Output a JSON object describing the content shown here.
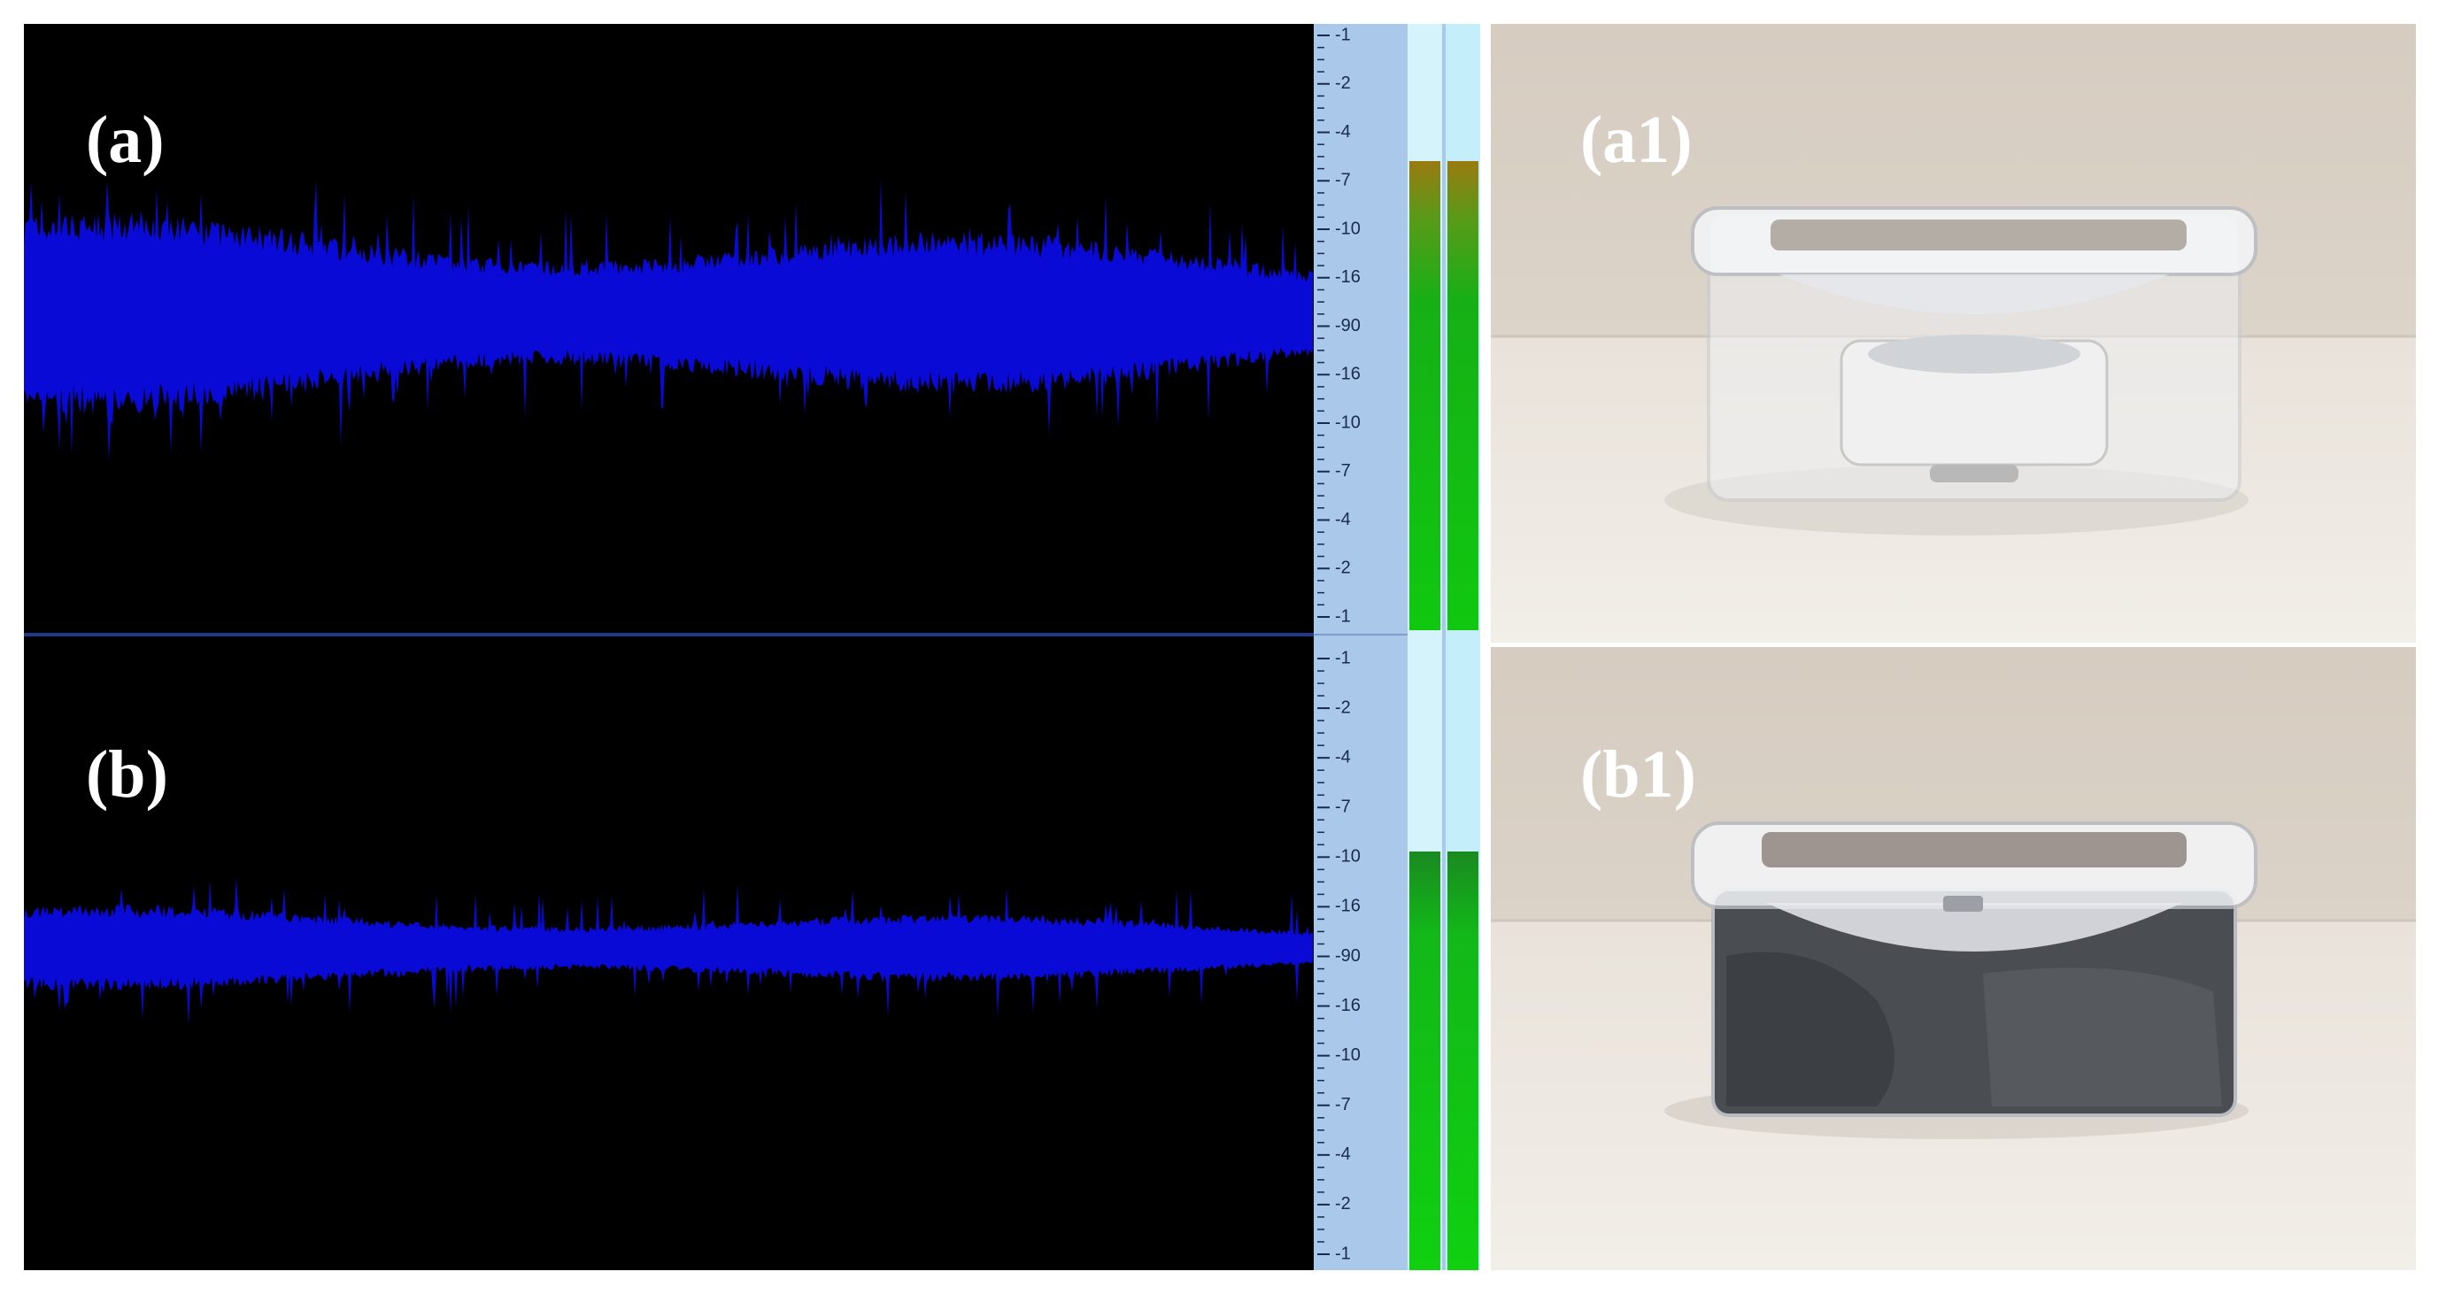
{
  "panels": {
    "a": "(a)",
    "b": "(b)",
    "a1": "(a1)",
    "b1": "(b1)"
  },
  "meter": {
    "top_ticks": [
      "-1",
      "-2",
      "-4",
      "-7",
      "-10",
      "-16",
      "-90",
      "-16",
      "-10",
      "-7",
      "-4",
      "-2",
      "-1"
    ],
    "bottom_ticks": [
      "-1",
      "-2",
      "-4",
      "-7",
      "-10",
      "-16",
      "-90",
      "-16",
      "-10",
      "-7",
      "-4",
      "-2",
      "-1"
    ]
  }
}
